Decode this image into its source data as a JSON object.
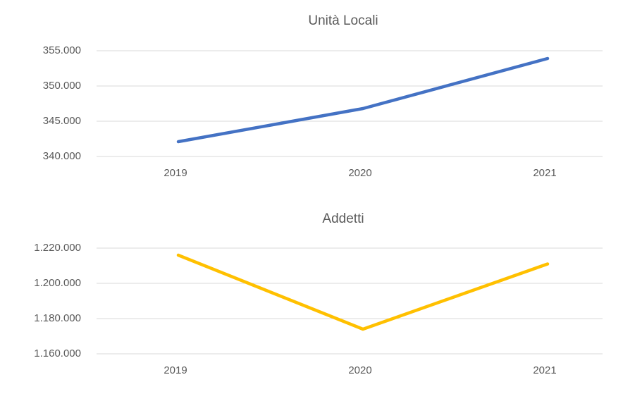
{
  "chart_data": [
    {
      "type": "line",
      "title": "Unità Locali",
      "categories": [
        "2019",
        "2020",
        "2021"
      ],
      "values": [
        342100,
        346800,
        353900
      ],
      "color": "#4472c4",
      "ylim": [
        340000,
        355000
      ],
      "yticks": [
        {
          "value": 340000,
          "label": "340.000"
        },
        {
          "value": 345000,
          "label": "345.000"
        },
        {
          "value": 350000,
          "label": "350.000"
        },
        {
          "value": 355000,
          "label": "355.000"
        }
      ],
      "grid": true
    },
    {
      "type": "line",
      "title": "Addetti",
      "categories": [
        "2019",
        "2020",
        "2021"
      ],
      "values": [
        1216000,
        1174000,
        1211000
      ],
      "color": "#ffc000",
      "ylim": [
        1160000,
        1220000
      ],
      "yticks": [
        {
          "value": 1160000,
          "label": "1.160.000"
        },
        {
          "value": 1180000,
          "label": "1.180.000"
        },
        {
          "value": 1200000,
          "label": "1.200.000"
        },
        {
          "value": 1220000,
          "label": "1.220.000"
        }
      ],
      "grid": true
    }
  ]
}
